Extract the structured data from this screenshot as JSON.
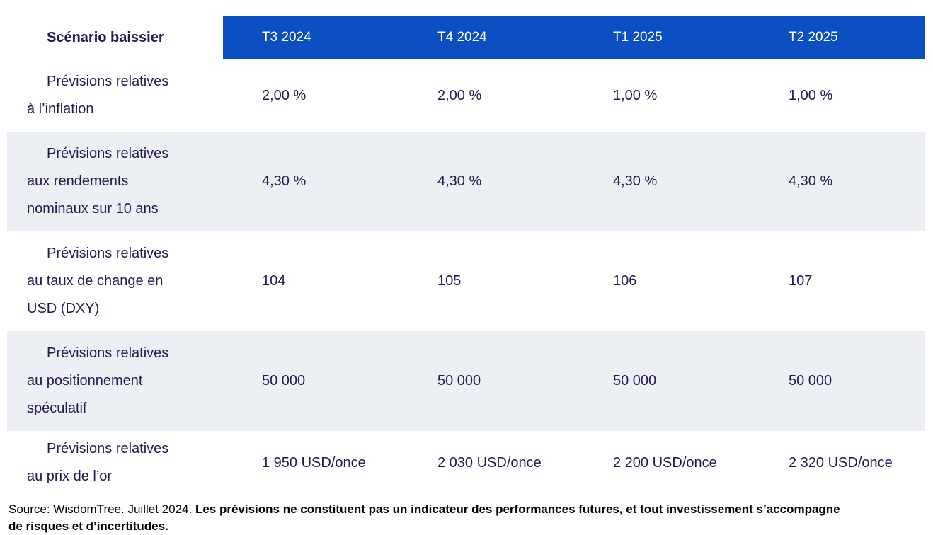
{
  "colors": {
    "header_blue": "#0B4FC2",
    "stripe": "#ECEFF3",
    "text_navy": "#191D52",
    "footer_text": "#000000"
  },
  "table": {
    "corner_label": "Scénario baissier",
    "columns": [
      "T3 2024",
      "T4 2024",
      "T1 2025",
      "T2 2025"
    ],
    "rows": [
      {
        "label": [
          "Prévisions relatives",
          "à l’inflation"
        ],
        "values": [
          "2,00 %",
          "2,00 %",
          "1,00 %",
          "1,00 %"
        ]
      },
      {
        "label": [
          "Prévisions relatives",
          "aux rendements",
          "nominaux sur 10 ans"
        ],
        "values": [
          "4,30 %",
          "4,30 %",
          "4,30 %",
          "4,30 %"
        ]
      },
      {
        "label": [
          "Prévisions relatives",
          "au taux de change en",
          "USD (DXY)"
        ],
        "values": [
          "104",
          "105",
          "106",
          "107"
        ]
      },
      {
        "label": [
          "Prévisions relatives",
          "au positionnement",
          "spéculatif"
        ],
        "values": [
          "50 000",
          "50 000",
          "50 000",
          "50 000"
        ]
      },
      {
        "label": [
          "Prévisions relatives",
          "au prix de l’or"
        ],
        "values": [
          "1 950 USD/once",
          "2 030 USD/once",
          "2 200 USD/once",
          "2 320 USD/once"
        ]
      }
    ]
  },
  "footer": {
    "source": "Source: WisdomTree. Juillet 2024. ",
    "disclaimer": "Les prévisions ne constituent pas un indicateur des performances futures, et tout investissement s’accompagne de risques et d’incertitudes."
  }
}
